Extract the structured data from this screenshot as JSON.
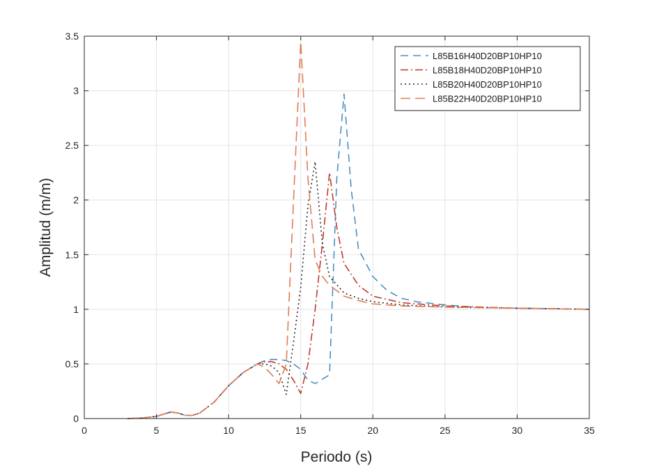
{
  "chart_data": {
    "type": "line",
    "title": "",
    "xlabel": "Periodo (s)",
    "ylabel": "Amplitud (m/m)",
    "xlim": [
      0,
      35
    ],
    "ylim": [
      0,
      3.5
    ],
    "xticks": [
      0,
      5,
      10,
      15,
      20,
      25,
      30,
      35
    ],
    "xtick_labels": [
      "0",
      "5",
      "10",
      "15",
      "20",
      "25",
      "30",
      "35"
    ],
    "yticks": [
      0,
      0.5,
      1,
      1.5,
      2,
      2.5,
      3,
      3.5
    ],
    "ytick_labels": [
      "0",
      "0.5",
      "1",
      "1.5",
      "2",
      "2.5",
      "3",
      "3.5"
    ],
    "grid": true,
    "legend_position": "top-right",
    "series": [
      {
        "name": "L85B16H40D20BP10HP10",
        "color": "#4a8fc4",
        "dash": "11,7",
        "x": [
          3,
          4,
          5,
          5.5,
          6,
          6.5,
          7,
          7.5,
          8,
          9,
          10,
          11,
          12,
          12.5,
          13,
          13.5,
          14,
          14.5,
          15,
          15.5,
          16,
          16.5,
          17,
          17.5,
          18,
          18.5,
          19,
          20,
          21,
          22,
          23,
          25,
          27,
          30,
          33,
          35
        ],
        "y": [
          0,
          0.005,
          0.02,
          0.04,
          0.06,
          0.05,
          0.03,
          0.03,
          0.05,
          0.15,
          0.3,
          0.42,
          0.5,
          0.53,
          0.54,
          0.54,
          0.53,
          0.5,
          0.45,
          0.35,
          0.32,
          0.36,
          0.4,
          2.2,
          2.97,
          2.1,
          1.55,
          1.3,
          1.17,
          1.1,
          1.07,
          1.04,
          1.02,
          1.01,
          1.005,
          1.0
        ]
      },
      {
        "name": "L85B18H40D20BP10HP10",
        "color": "#c0392b",
        "dash": "11,4,2,4",
        "x": [
          3,
          4,
          5,
          5.5,
          6,
          6.5,
          7,
          7.5,
          8,
          9,
          10,
          11,
          12,
          12.5,
          13,
          13.5,
          14,
          14.5,
          15,
          15.5,
          16,
          16.5,
          17,
          17.5,
          18,
          19,
          20,
          22,
          25,
          30,
          35
        ],
        "y": [
          0,
          0.005,
          0.02,
          0.04,
          0.06,
          0.05,
          0.03,
          0.03,
          0.05,
          0.15,
          0.3,
          0.42,
          0.5,
          0.52,
          0.52,
          0.5,
          0.45,
          0.35,
          0.23,
          0.5,
          1.0,
          1.6,
          2.25,
          1.75,
          1.42,
          1.22,
          1.12,
          1.06,
          1.03,
          1.01,
          1.0
        ]
      },
      {
        "name": "L85B20H40D20BP10HP10",
        "color": "#262626",
        "dash": "2,4",
        "x": [
          3,
          4,
          5,
          5.5,
          6,
          6.5,
          7,
          7.5,
          8,
          9,
          10,
          11,
          12,
          12.5,
          13,
          13.5,
          14,
          14.5,
          15,
          15.5,
          16,
          16.5,
          17,
          18,
          19,
          20,
          22,
          25,
          30,
          35
        ],
        "y": [
          0,
          0.005,
          0.02,
          0.04,
          0.06,
          0.05,
          0.03,
          0.03,
          0.05,
          0.15,
          0.3,
          0.42,
          0.5,
          0.5,
          0.48,
          0.42,
          0.22,
          0.7,
          1.2,
          1.95,
          2.35,
          1.6,
          1.3,
          1.15,
          1.1,
          1.07,
          1.04,
          1.02,
          1.01,
          1.0
        ]
      },
      {
        "name": "L85B22H40D20BP10HP10",
        "color": "#e07b54",
        "dash": "14,7",
        "x": [
          3,
          4,
          5,
          5.5,
          6,
          6.5,
          7,
          7.5,
          8,
          9,
          10,
          11,
          12,
          12.5,
          13,
          13.5,
          14,
          14.5,
          15,
          15.5,
          16,
          16.5,
          17,
          18,
          19,
          20,
          22,
          25,
          30,
          35
        ],
        "y": [
          0,
          0.005,
          0.02,
          0.04,
          0.06,
          0.05,
          0.03,
          0.03,
          0.05,
          0.15,
          0.3,
          0.42,
          0.5,
          0.47,
          0.4,
          0.32,
          0.5,
          2.0,
          3.45,
          2.2,
          1.45,
          1.3,
          1.22,
          1.12,
          1.08,
          1.05,
          1.03,
          1.02,
          1.01,
          1.0
        ]
      }
    ]
  }
}
